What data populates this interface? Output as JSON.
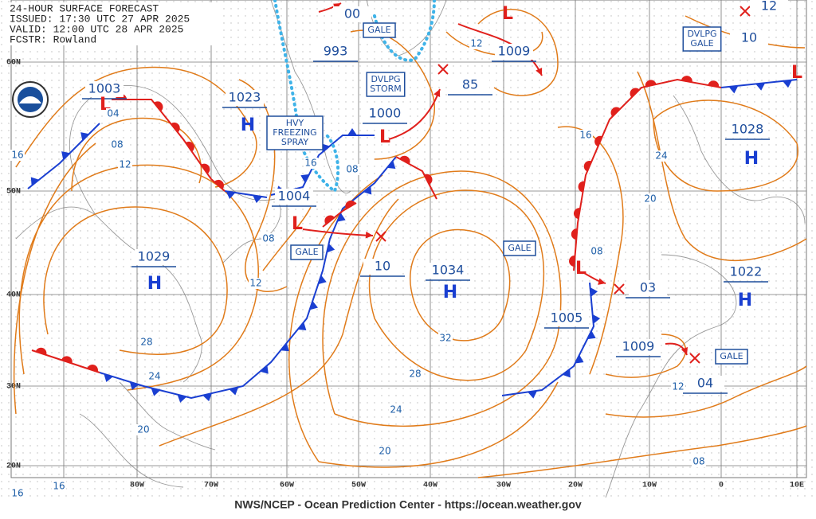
{
  "header": {
    "lines": [
      "24-HOUR SURFACE FORECAST",
      "ISSUED: 17:30 UTC 27 APR 2025",
      "VALID: 12:00 UTC 28 APR 2025",
      "FCSTR: Rowland"
    ]
  },
  "footer": "NWS/NCEP - Ocean Prediction Center - https://ocean.weather.gov",
  "latitude_labels": [
    "60N",
    "50N",
    "40N",
    "30N",
    "20N"
  ],
  "longitude_labels": [
    "80W",
    "70W",
    "60W",
    "50W",
    "40W",
    "30W",
    "20W",
    "10W",
    "0",
    "10E"
  ],
  "pressure_labels": [
    "1003",
    "1023",
    "993",
    "1009",
    "1000",
    "85",
    "1028",
    "1004",
    "1029",
    "10",
    "1034",
    "1005",
    "03",
    "1022",
    "1009",
    "04",
    "10",
    "12",
    "00"
  ],
  "centers": [
    "H",
    "H",
    "H",
    "H",
    "H",
    "L",
    "L",
    "L",
    "L",
    "L",
    "L"
  ],
  "warnings": [
    {
      "lines": [
        "GALE"
      ]
    },
    {
      "lines": [
        "DVLPG",
        "STORM"
      ]
    },
    {
      "lines": [
        "DVLPG",
        "GALE"
      ]
    },
    {
      "lines": [
        "HVY",
        "FREEZING",
        "SPRAY"
      ]
    },
    {
      "lines": [
        "GALE"
      ]
    },
    {
      "lines": [
        "GALE"
      ]
    },
    {
      "lines": [
        "GALE"
      ]
    }
  ],
  "isobar_labels": [
    "16",
    "08",
    "12",
    "04",
    "16",
    "08",
    "12",
    "08",
    "28",
    "24",
    "20",
    "32",
    "28",
    "24",
    "20",
    "16",
    "24",
    "20",
    "08",
    "12",
    "08",
    "16",
    "16",
    "12"
  ]
}
